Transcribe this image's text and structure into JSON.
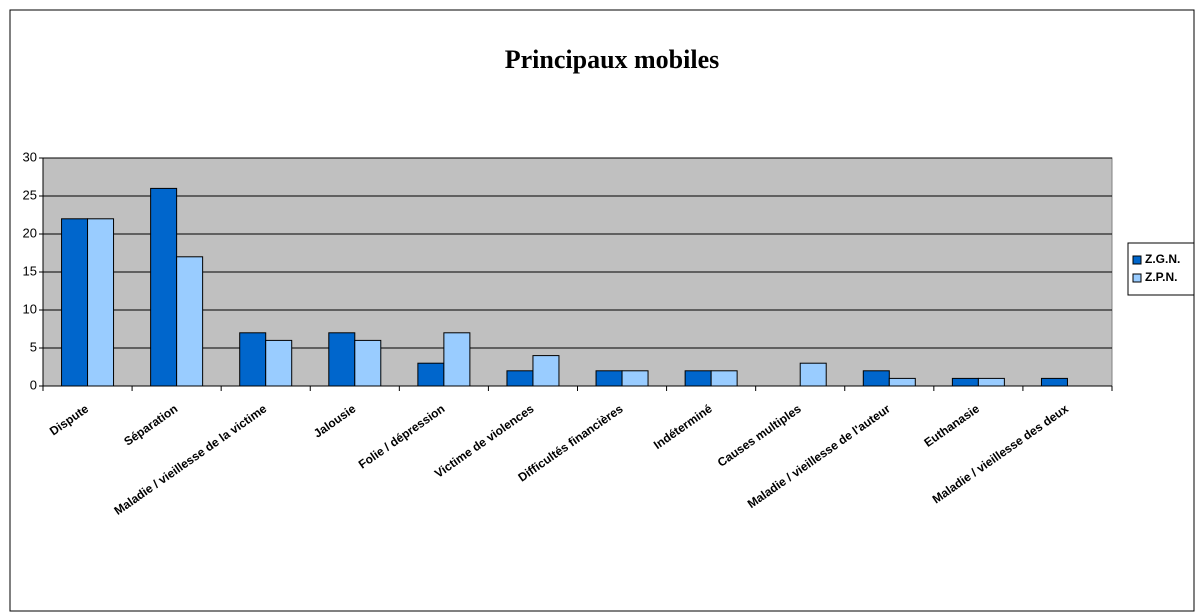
{
  "chart_data": {
    "type": "bar",
    "title": "Principaux mobiles",
    "categories": [
      "Dispute",
      "Séparation",
      "Maladie / vieillesse de la victime",
      "Jalousie",
      "Folie / dépression",
      "Victime de violences",
      "Difficultés financières",
      "Indéterminé",
      "Causes multiples",
      "Maladie / vieillesse de l'auteur",
      "Euthanasie",
      "Maladie / vieillesse des deux"
    ],
    "series": [
      {
        "name": "Z.G.N.",
        "color": "#0066cc",
        "values": [
          22,
          26,
          7,
          7,
          3,
          2,
          2,
          2,
          0,
          2,
          1,
          1
        ]
      },
      {
        "name": "Z.P.N.",
        "color": "#99ccff",
        "values": [
          22,
          17,
          6,
          6,
          7,
          4,
          2,
          2,
          3,
          1,
          1,
          0
        ]
      }
    ],
    "ylim": [
      0,
      30
    ],
    "yticks": [
      0,
      5,
      10,
      15,
      20,
      25,
      30
    ],
    "grid": true,
    "legend": "right"
  }
}
